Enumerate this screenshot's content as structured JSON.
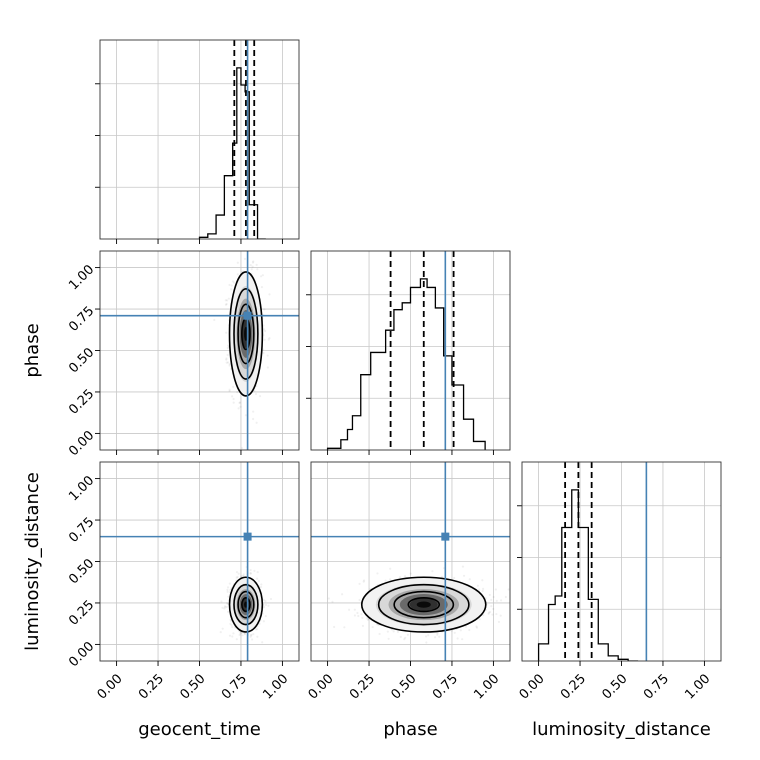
{
  "chart_data": {
    "type": "corner",
    "parameters": [
      "geocent_time",
      "phase",
      "luminosity_distance"
    ],
    "axis_range": [
      -0.1,
      1.1
    ],
    "ticks": [
      0.0,
      0.25,
      0.5,
      0.75,
      1.0
    ],
    "tick_labels": [
      "0.00",
      "0.25",
      "0.50",
      "0.75",
      "1.00"
    ],
    "grid": true,
    "truth_color": "#4682b4",
    "truths": {
      "geocent_time": 0.79,
      "phase": 0.71,
      "luminosity_distance": 0.65
    },
    "quantiles": {
      "geocent_time": [
        0.71,
        0.78,
        0.83
      ],
      "phase": [
        0.38,
        0.58,
        0.76
      ],
      "luminosity_distance": [
        0.16,
        0.24,
        0.32
      ]
    },
    "marginals": {
      "geocent_time": {
        "bin_edges": [
          0.5,
          0.55,
          0.6,
          0.65,
          0.7,
          0.725,
          0.75,
          0.775,
          0.8,
          0.85,
          0.9
        ],
        "counts": [
          0.01,
          0.03,
          0.14,
          0.37,
          0.56,
          1.0,
          0.9,
          0.86,
          0.2,
          0.0
        ]
      },
      "phase": {
        "bin_edges": [
          0.0,
          0.08,
          0.12,
          0.15,
          0.2,
          0.26,
          0.35,
          0.4,
          0.45,
          0.5,
          0.56,
          0.6,
          0.65,
          0.7,
          0.75,
          0.82,
          0.88,
          0.95
        ],
        "counts": [
          0.01,
          0.06,
          0.12,
          0.2,
          0.44,
          0.57,
          0.7,
          0.82,
          0.86,
          0.95,
          1.0,
          0.95,
          0.83,
          0.55,
          0.38,
          0.18,
          0.05
        ]
      },
      "luminosity_distance": {
        "bin_edges": [
          0.0,
          0.06,
          0.1,
          0.14,
          0.2,
          0.24,
          0.27,
          0.3,
          0.36,
          0.42,
          0.48,
          0.54,
          0.6
        ],
        "counts": [
          0.1,
          0.33,
          0.38,
          0.78,
          1.0,
          0.78,
          0.78,
          0.36,
          0.1,
          0.03,
          0.01,
          0.0
        ]
      }
    },
    "posteriors_2d": [
      {
        "x": "geocent_time",
        "y": "phase",
        "mean": [
          0.78,
          0.6
        ],
        "sd": [
          0.045,
          0.17
        ]
      },
      {
        "x": "geocent_time",
        "y": "luminosity_distance",
        "mean": [
          0.78,
          0.24
        ],
        "sd": [
          0.045,
          0.075
        ]
      },
      {
        "x": "phase",
        "y": "luminosity_distance",
        "mean": [
          0.58,
          0.24
        ],
        "sd": [
          0.17,
          0.075
        ]
      }
    ]
  }
}
